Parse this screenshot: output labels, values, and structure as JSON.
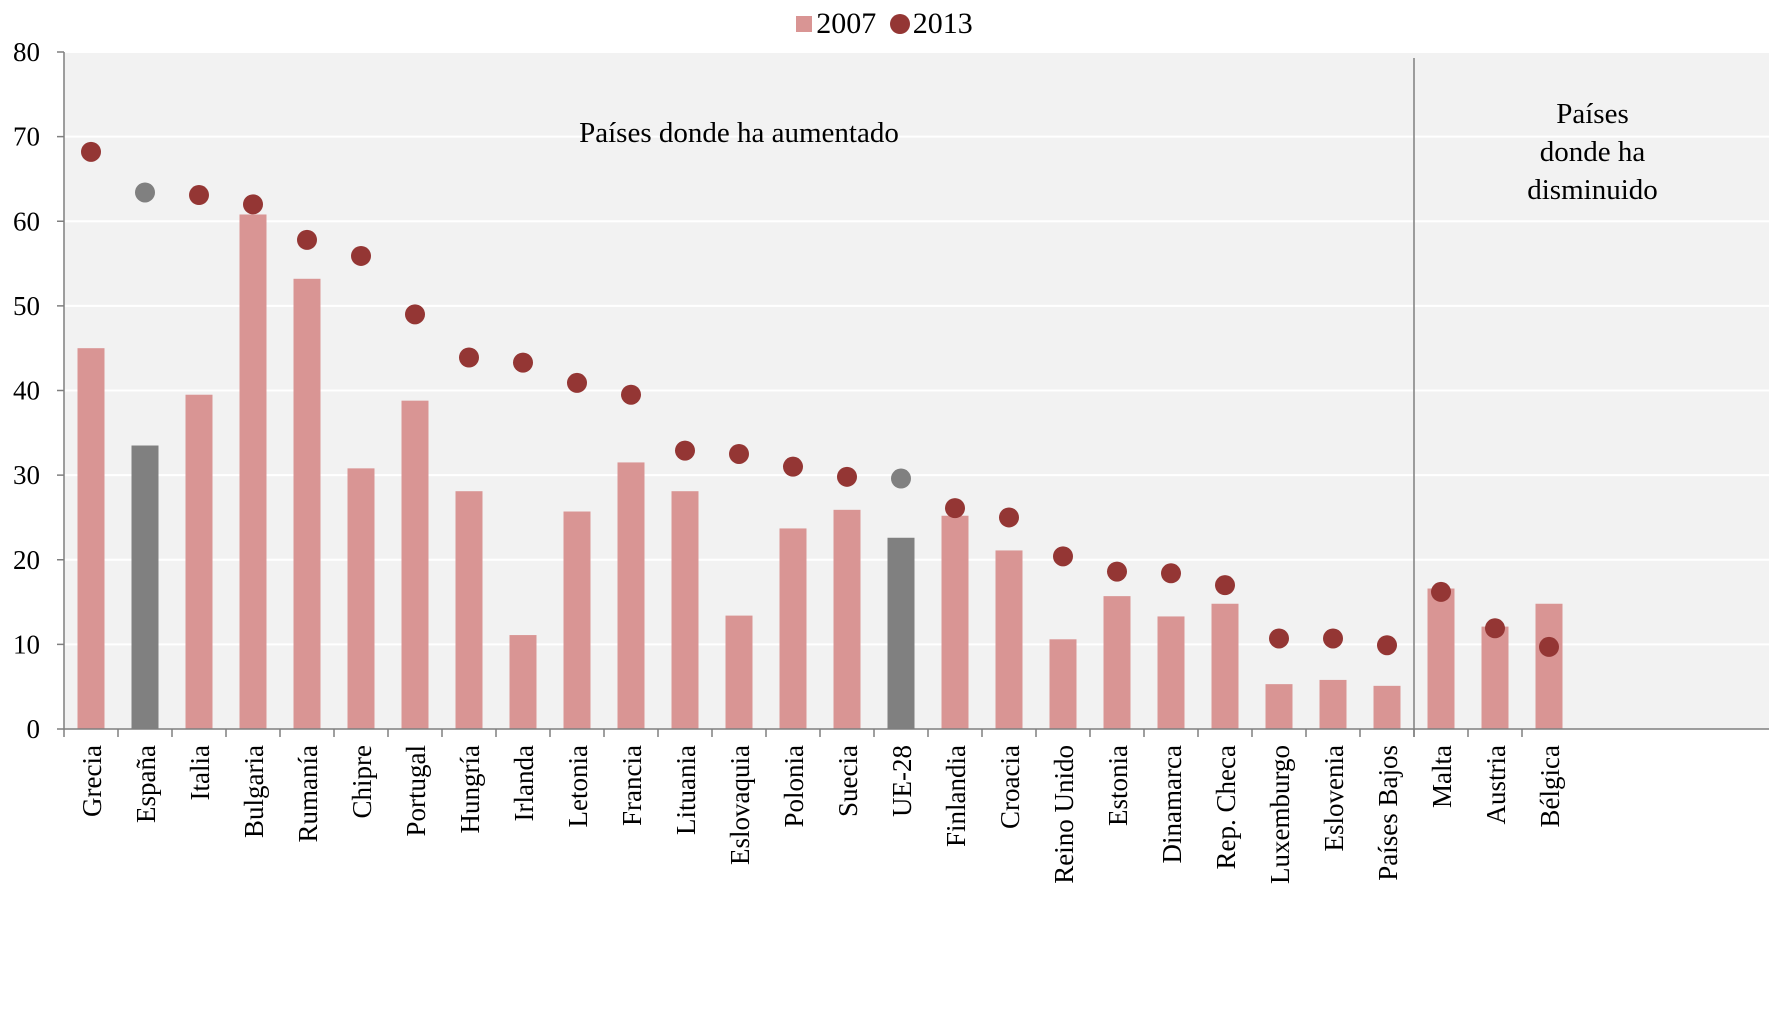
{
  "legend": {
    "series_2007": "2007",
    "series_2013": "2013"
  },
  "chart_data": {
    "type": "bar",
    "ylim": [
      0,
      80
    ],
    "yticks": [
      0,
      10,
      20,
      30,
      40,
      50,
      60,
      70,
      80
    ],
    "grid": true,
    "legend_position": "top-center",
    "categories": [
      "Grecia",
      "España",
      "Italia",
      "Bulgaria",
      "Rumanía",
      "Chipre",
      "Portugal",
      "Hungría",
      "Irlanda",
      "Letonia",
      "Francia",
      "Lituania",
      "Eslovaquia",
      "Polonia",
      "Suecia",
      "UE-28",
      "Finlandia",
      "Croacia",
      "Reino Unido",
      "Estonia",
      "Dinamarca",
      "Rep. Checa",
      "Luxemburgo",
      "Eslovenia",
      "Países Bajos",
      "Malta",
      "Austria",
      "Bélgica"
    ],
    "highlighted_categories": [
      "España",
      "UE-28"
    ],
    "series": [
      {
        "name": "2007",
        "mark": "bar",
        "values": [
          45.0,
          33.5,
          39.5,
          60.8,
          53.2,
          30.8,
          38.8,
          28.1,
          11.1,
          25.7,
          31.5,
          28.1,
          13.4,
          23.7,
          25.9,
          22.6,
          25.2,
          21.1,
          10.6,
          15.7,
          13.3,
          14.8,
          5.3,
          5.8,
          5.1,
          16.6,
          12.1,
          14.8
        ]
      },
      {
        "name": "2013",
        "mark": "dot",
        "values": [
          68.2,
          63.4,
          63.1,
          62.0,
          57.8,
          55.9,
          49.0,
          43.9,
          43.3,
          40.9,
          39.5,
          32.9,
          32.5,
          31.0,
          29.8,
          29.6,
          26.1,
          25.0,
          20.4,
          18.6,
          18.4,
          17.0,
          10.7,
          10.7,
          9.9,
          16.2,
          11.9,
          9.7
        ]
      }
    ],
    "colors": {
      "bar_2007": "#d99594",
      "dot_2013": "#943634",
      "highlight": "#808080",
      "plot_background": "#f2f2f2",
      "gridline": "#ffffff"
    },
    "annotations": {
      "increased": [
        "Países donde ha aumentado"
      ],
      "decreased": [
        "Países",
        "donde  ha",
        "disminuido"
      ]
    },
    "separator_after_category": "Países Bajos"
  }
}
